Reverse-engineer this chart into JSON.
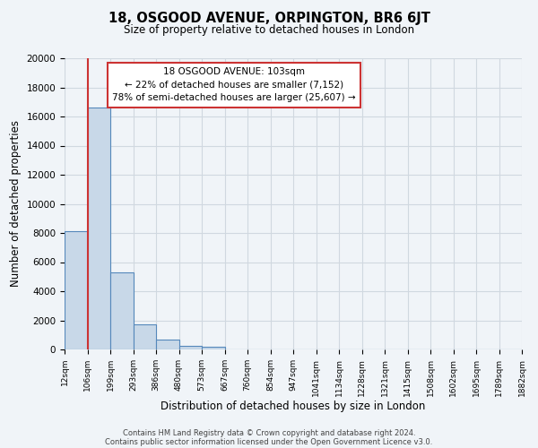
{
  "title": "18, OSGOOD AVENUE, ORPINGTON, BR6 6JT",
  "subtitle": "Size of property relative to detached houses in London",
  "xlabel": "Distribution of detached houses by size in London",
  "ylabel": "Number of detached properties",
  "bar_color": "#c8d8e8",
  "bar_edge_color": "#5588bb",
  "background_color": "#f0f4f8",
  "grid_color": "#d0d8e0",
  "tick_labels": [
    "12sqm",
    "106sqm",
    "199sqm",
    "293sqm",
    "386sqm",
    "480sqm",
    "573sqm",
    "667sqm",
    "760sqm",
    "854sqm",
    "947sqm",
    "1041sqm",
    "1134sqm",
    "1228sqm",
    "1321sqm",
    "1415sqm",
    "1508sqm",
    "1602sqm",
    "1695sqm",
    "1789sqm",
    "1882sqm"
  ],
  "bar_heights": [
    8100,
    16600,
    5300,
    1750,
    700,
    250,
    200,
    0,
    0,
    0,
    0,
    0,
    0,
    0,
    0,
    0,
    0,
    0,
    0,
    0
  ],
  "ylim": [
    0,
    20000
  ],
  "yticks": [
    0,
    2000,
    4000,
    6000,
    8000,
    10000,
    12000,
    14000,
    16000,
    18000,
    20000
  ],
  "vline_x": 1,
  "annotation_title": "18 OSGOOD AVENUE: 103sqm",
  "annotation_line1": "← 22% of detached houses are smaller (7,152)",
  "annotation_line2": "78% of semi-detached houses are larger (25,607) →",
  "annotation_box_color": "#ffffff",
  "annotation_box_edge": "#cc3333",
  "vline_color": "#cc3333",
  "footer_line1": "Contains HM Land Registry data © Crown copyright and database right 2024.",
  "footer_line2": "Contains public sector information licensed under the Open Government Licence v3.0."
}
